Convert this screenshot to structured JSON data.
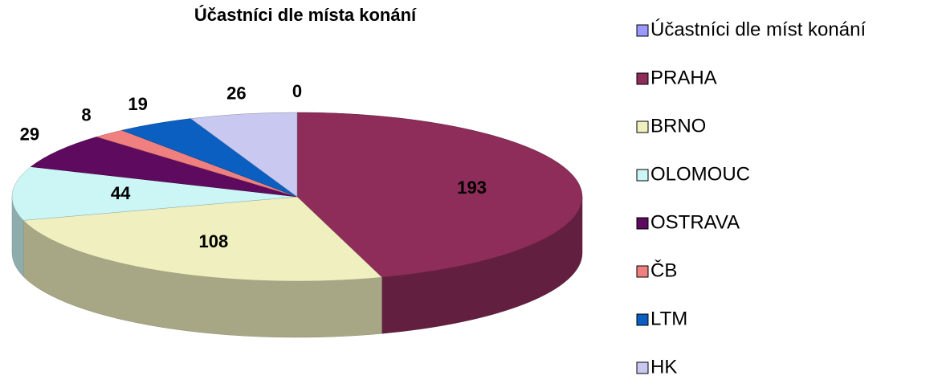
{
  "chart_data": {
    "type": "pie3d",
    "title": "Účastníci dle místa konání",
    "categories": [
      "Účastníci dle míst konání",
      "PRAHA",
      "BRNO",
      "OLOMOUC",
      "OSTRAVA",
      "ČB",
      "LTM",
      "HK"
    ],
    "values": [
      0,
      193,
      108,
      44,
      29,
      8,
      19,
      26
    ],
    "colors": [
      "#9999ff",
      "#8e2c5a",
      "#efefbf",
      "#ccf5f5",
      "#5e0a5e",
      "#f08080",
      "#0a5fc0",
      "#c8c8f0"
    ],
    "legend": "right"
  }
}
